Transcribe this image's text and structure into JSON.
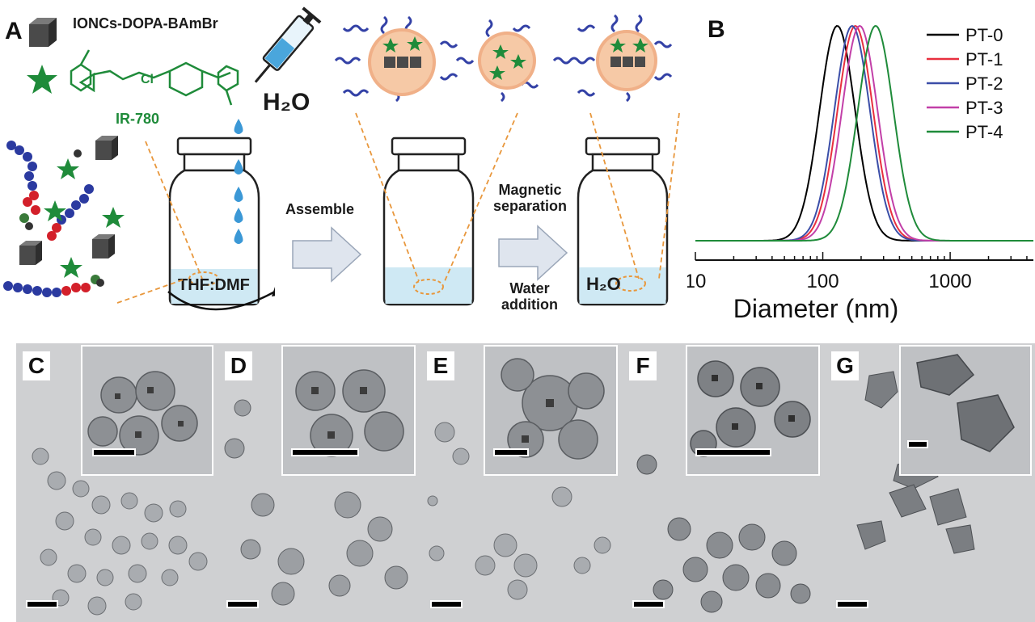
{
  "panel_a": {
    "letter": "A",
    "ioncs_label": "IONCs-DOPA-BAmBr",
    "ir_label": "IR-780",
    "cl_label": "Cl",
    "water_label_h2o": "H₂O",
    "solvent_label": "THF:DMF",
    "step1_label": "Assemble",
    "step2_label_top": "Magnetic\nseparation",
    "step2_label_bottom": "Water\naddition",
    "vial3_label": "H₂O"
  },
  "panel_b": {
    "letter": "B"
  },
  "chart_data": {
    "type": "line",
    "xlabel": "Diameter (nm)",
    "ylabel": "",
    "x_scale": "log",
    "xlim": [
      10,
      4500
    ],
    "x_ticks": [
      "10",
      "100",
      "1000"
    ],
    "legend_position": "top-right",
    "series": [
      {
        "name": "PT-0",
        "color": "#000000",
        "center_nm": 130,
        "width": 0.14
      },
      {
        "name": "PT-1",
        "color": "#e8303f",
        "center_nm": 180,
        "width": 0.14
      },
      {
        "name": "PT-2",
        "color": "#3b4ea8",
        "center_nm": 170,
        "width": 0.14
      },
      {
        "name": "PT-3",
        "color": "#c23fa8",
        "center_nm": 195,
        "width": 0.14
      },
      {
        "name": "PT-4",
        "color": "#1f8b3a",
        "center_nm": 260,
        "width": 0.14
      }
    ]
  },
  "tem_panels": [
    {
      "letter": "C"
    },
    {
      "letter": "D"
    },
    {
      "letter": "E"
    },
    {
      "letter": "F"
    },
    {
      "letter": "G"
    }
  ]
}
